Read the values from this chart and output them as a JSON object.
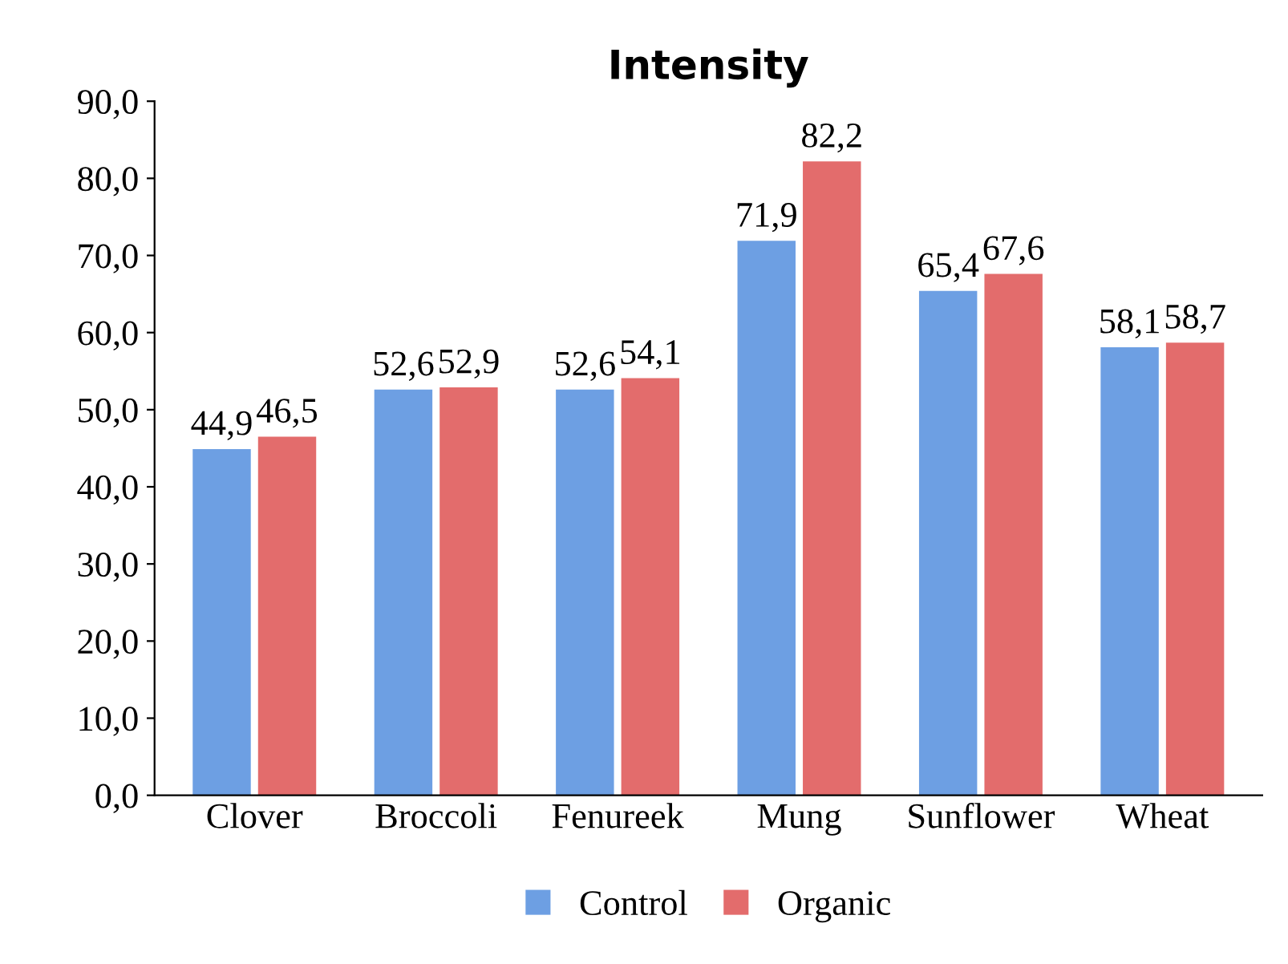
{
  "chart_data": {
    "type": "bar",
    "title": "Intensity",
    "categories": [
      "Clover",
      "Broccoli",
      "Fenureek",
      "Mung",
      "Sunflower",
      "Wheat"
    ],
    "series": [
      {
        "name": "Control",
        "color": "#6d9fe3",
        "values": [
          44.9,
          52.6,
          52.6,
          71.9,
          65.4,
          58.1
        ],
        "value_labels": [
          "44,9",
          "52,6",
          "52,6",
          "71,9",
          "65,4",
          "58,1"
        ]
      },
      {
        "name": "Organic",
        "color": "#e36c6c",
        "values": [
          46.5,
          52.9,
          54.1,
          82.2,
          67.6,
          58.7
        ],
        "value_labels": [
          "46,5",
          "52,9",
          "54,1",
          "82,2",
          "67,6",
          "58,7"
        ]
      }
    ],
    "ylim": [
      0,
      90
    ],
    "yticks": [
      {
        "value": 0,
        "label": "0,0"
      },
      {
        "value": 10,
        "label": "10,0"
      },
      {
        "value": 20,
        "label": "20,0"
      },
      {
        "value": 30,
        "label": "30,0"
      },
      {
        "value": 40,
        "label": "40,0"
      },
      {
        "value": 50,
        "label": "50,0"
      },
      {
        "value": 60,
        "label": "60,0"
      },
      {
        "value": 70,
        "label": "70,0"
      },
      {
        "value": 80,
        "label": "80,0"
      },
      {
        "value": 90,
        "label": "90,0"
      }
    ],
    "grid": false,
    "legend": "bottom"
  }
}
